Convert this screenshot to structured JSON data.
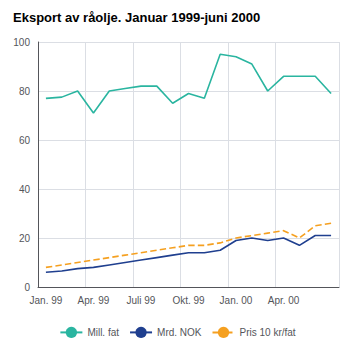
{
  "chart_data": {
    "type": "line",
    "title": "Eksport av råolje. Januar 1999-juni 2000",
    "categories": [
      "Jan. 99",
      null,
      null,
      "Apr. 99",
      null,
      null,
      "Juli 99",
      null,
      null,
      "Okt. 99",
      null,
      null,
      "Jan. 00",
      null,
      null,
      "Apr. 00",
      null,
      null,
      null
    ],
    "series": [
      {
        "name": "Mill. fat",
        "color": "#2ab5a0",
        "line_style": "solid",
        "values": [
          77,
          77.5,
          80,
          71,
          80,
          81,
          82,
          82,
          75,
          79,
          77,
          95,
          94,
          91,
          80,
          86,
          86,
          86,
          79
        ]
      },
      {
        "name": "Mrd. NOK",
        "color": "#1f3f8f",
        "line_style": "solid",
        "values": [
          6,
          6.5,
          7.5,
          8,
          9,
          10,
          11,
          12,
          13,
          14,
          14,
          15,
          19,
          20,
          19,
          20,
          17,
          21,
          21
        ]
      },
      {
        "name": "Pris 10 kr/fat",
        "color": "#f5a020",
        "line_style": "dashed",
        "values": [
          8,
          9,
          10,
          11,
          12,
          13,
          14,
          15,
          16,
          17,
          17,
          18,
          20,
          21,
          22,
          23,
          20,
          25,
          26
        ]
      }
    ],
    "ylim": [
      0,
      100
    ],
    "yticks": [
      0,
      20,
      40,
      60,
      80,
      100
    ],
    "grid": true,
    "legend": "bottom"
  }
}
